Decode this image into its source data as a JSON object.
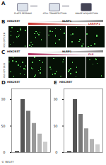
{
  "figure": {
    "panels": [
      {
        "letter": "A",
        "steps": [
          "PLATE SEEDING",
          "CELL TRANSFECTION",
          "IMAGE ACQUISITION"
        ]
      },
      {
        "letter": "B",
        "cell_line": "HEK293T",
        "gradient_labels": [
          "NLRP1",
          "LRRFIP1"
        ],
        "color": "#c8302a",
        "image_label": "ASC-GFP (1:1)"
      },
      {
        "letter": "C",
        "cell_line": "HEK293T",
        "gradient_labels": [
          "NLRP1",
          "FLII"
        ],
        "color": "#b03060",
        "image_label": "ASC-GFP (1:1)"
      }
    ],
    "credit": "© WILEY"
  },
  "chart_data": [
    {
      "type": "bar",
      "title": "D",
      "subtitle": "HEK293T",
      "categories": [
        null,
        null,
        null,
        null,
        null,
        null
      ],
      "values": [
        2,
        100,
        78,
        55,
        35,
        20
      ],
      "colors": [
        "#222222",
        "#555555",
        "#777777",
        "#999999",
        "#b3b3b3",
        "#cccccc"
      ],
      "ylim": [
        0,
        120
      ],
      "yticks": [
        0,
        50,
        100
      ],
      "tick_labels": "y"
    },
    {
      "type": "bar",
      "title": "E",
      "subtitle": "HEK293T",
      "categories": [
        null,
        null,
        null,
        null,
        null,
        null
      ],
      "values": [
        2,
        100,
        72,
        45,
        25,
        15
      ],
      "colors": [
        "#222222",
        "#555555",
        "#777777",
        "#999999",
        "#b3b3b3",
        "#cccccc"
      ],
      "ylim": [
        0,
        120
      ],
      "yticks": [
        0,
        50,
        100
      ],
      "tick_labels": "y"
    }
  ]
}
